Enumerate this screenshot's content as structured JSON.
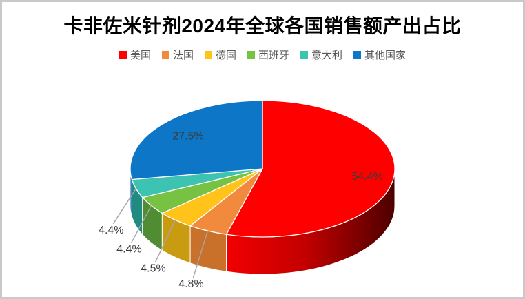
{
  "chart_data": {
    "type": "pie",
    "variant": "3d-pie",
    "title": "卡非佐米针剂2024年全球各国销售额产出占比",
    "categories": [
      "美国",
      "法国",
      "德国",
      "西班牙",
      "意大利",
      "其他国家"
    ],
    "values": [
      54.4,
      4.8,
      4.5,
      4.4,
      4.4,
      27.5
    ],
    "data_labels": [
      "54.4%",
      "4.8%",
      "4.5%",
      "4.4%",
      "4.4%",
      "27.5%"
    ],
    "unit": "%",
    "start_angle_deg": 0,
    "direction": "clockwise",
    "legend_position": "top",
    "colors": [
      "#FE0000",
      "#F18A3D",
      "#FFC31A",
      "#77C143",
      "#3DC3B2",
      "#0D76C6"
    ],
    "side_colors": [
      "#B00000",
      "#C9702B",
      "#C89B10",
      "#4F8C33",
      "#1F8B81",
      "#095E9E"
    ],
    "red_side_gradient": [
      "#F00000",
      "#C30000",
      "#4A0000"
    ],
    "label_color": "#3B3B3B",
    "leader_line_color": "#A6A6A6",
    "title_color": "#000000",
    "legend_text_color": "#595959",
    "slice_border_color": "#FFFFFF"
  }
}
